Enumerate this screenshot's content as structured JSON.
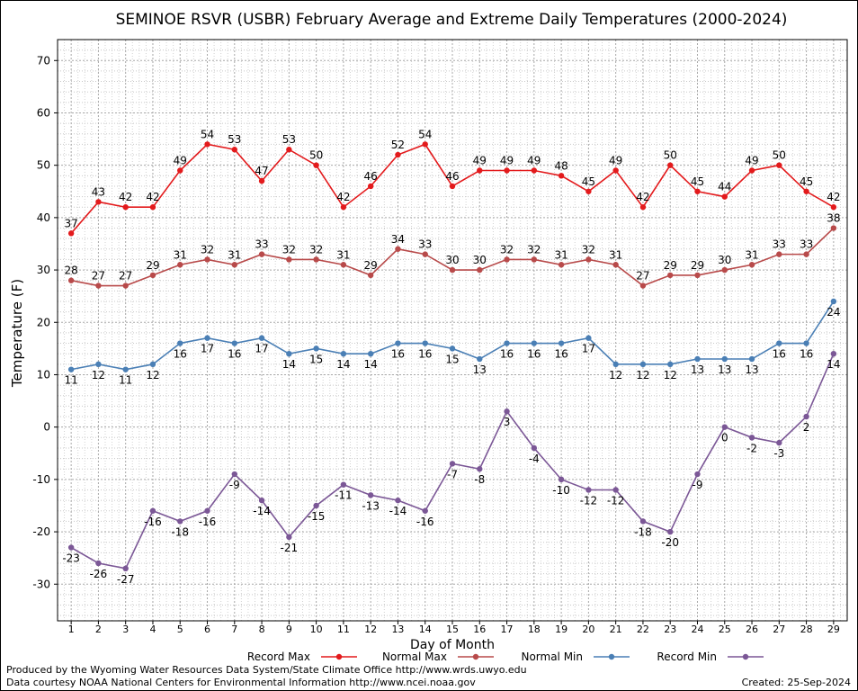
{
  "footer": {
    "produced_by": "Produced by the Wyoming Water Resources Data System/State Climate Office http://www.wrds.uwyo.edu",
    "data_courtesy": "Data courtesy NOAA National Centers for Environmental Information http://www.ncei.noaa.gov",
    "created": "Created:  25-Sep-2024"
  },
  "chart_data": {
    "type": "line",
    "title": "SEMINOE RSVR (USBR) February Average and Extreme Daily Temperatures (2000-2024)",
    "xlabel": "Day of Month",
    "ylabel": "Temperature (F)",
    "x": [
      1,
      2,
      3,
      4,
      5,
      6,
      7,
      8,
      9,
      10,
      11,
      12,
      13,
      14,
      15,
      16,
      17,
      18,
      19,
      20,
      21,
      22,
      23,
      24,
      25,
      26,
      27,
      28,
      29
    ],
    "xlim": [
      0.5,
      29.5
    ],
    "ylim": [
      -37,
      74
    ],
    "yticks": [
      -30,
      -20,
      -10,
      0,
      10,
      20,
      30,
      40,
      50,
      60,
      70
    ],
    "grid": true,
    "legend_position": "bottom",
    "series": [
      {
        "name": "Record Max",
        "color": "#e31a1c",
        "label_pos": "above",
        "values": [
          37,
          43,
          42,
          42,
          49,
          54,
          53,
          47,
          53,
          50,
          42,
          46,
          52,
          54,
          46,
          49,
          49,
          49,
          48,
          45,
          49,
          42,
          50,
          45,
          44,
          49,
          50,
          45,
          42
        ]
      },
      {
        "name": "Normal Max",
        "color": "#b84a4a",
        "label_pos": "above",
        "values": [
          28,
          27,
          27,
          29,
          31,
          32,
          31,
          33,
          32,
          32,
          31,
          29,
          34,
          33,
          30,
          30,
          32,
          32,
          31,
          32,
          31,
          27,
          29,
          29,
          30,
          31,
          33,
          33,
          38
        ]
      },
      {
        "name": "Normal Min",
        "color": "#4a7fb5",
        "label_pos": "below",
        "values": [
          11,
          12,
          11,
          12,
          16,
          17,
          16,
          17,
          14,
          15,
          14,
          14,
          16,
          16,
          15,
          13,
          16,
          16,
          16,
          17,
          12,
          12,
          12,
          13,
          13,
          13,
          16,
          16,
          24
        ]
      },
      {
        "name": "Record Min",
        "color": "#7b5796",
        "label_pos": "below",
        "values": [
          -23,
          -26,
          -27,
          -16,
          -18,
          -16,
          -9,
          -14,
          -21,
          -15,
          -11,
          -13,
          -14,
          -16,
          -7,
          -8,
          3,
          -4,
          -10,
          -12,
          -12,
          -18,
          -20,
          -9,
          0,
          -2,
          -3,
          2,
          14
        ]
      }
    ]
  }
}
